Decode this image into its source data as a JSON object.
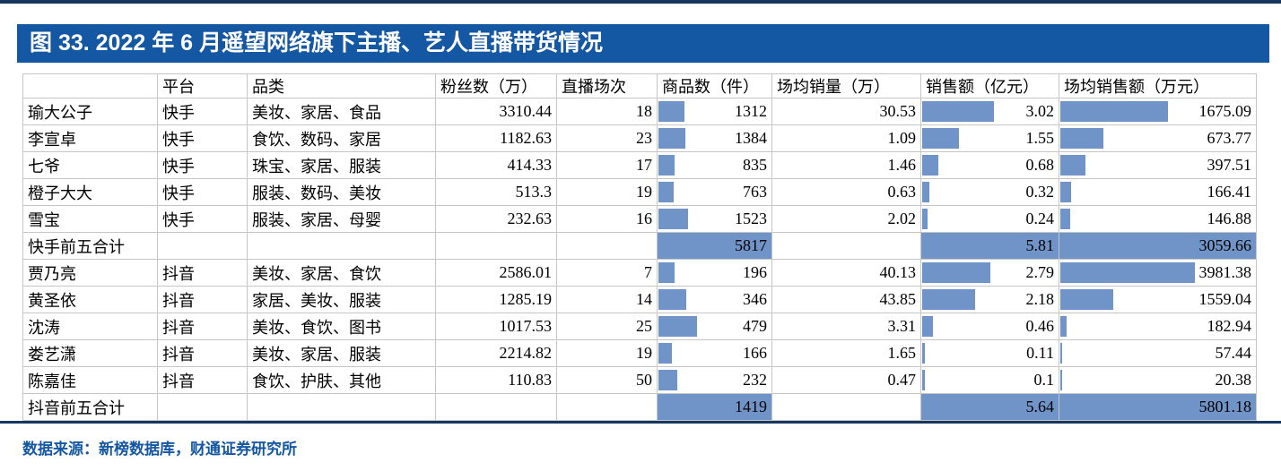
{
  "title": "图 33. 2022 年 6 月遥望网络旗下主播、艺人直播带货情况",
  "source": "数据来源：新榜数据库，财通证券研究所",
  "colors": {
    "banner_blue": "#1457a3",
    "rule_navy": "#17365d",
    "databar_blue": "#7094c8",
    "grid_gray": "#c6c6c6"
  },
  "chart_data": {
    "type": "table",
    "columns": [
      "",
      "平台",
      "品类",
      "粉丝数（万）",
      "直播场次",
      "商品数（件）",
      "场均销量（万）",
      "销售额（亿元）",
      "场均销售额（万元）"
    ],
    "bar_columns": [
      "products",
      "revenue",
      "avg_revenue"
    ],
    "bar_max": {
      "kuaishou": {
        "products": 5817,
        "revenue": 5.81,
        "avg_revenue": 3059.66
      },
      "douyin": {
        "products": 1419,
        "revenue": 5.64,
        "avg_revenue": 5801.18
      }
    },
    "rows": [
      {
        "group": "kuaishou",
        "summary": false,
        "name": "瑜大公子",
        "platform": "快手",
        "category": "美妆、家居、食品",
        "fans": "3310.44",
        "sessions": "18",
        "products": "1312",
        "avg_sales_vol": "30.53",
        "revenue": "3.02",
        "avg_revenue": "1675.09"
      },
      {
        "group": "kuaishou",
        "summary": false,
        "name": "李宣卓",
        "platform": "快手",
        "category": "食饮、数码、家居",
        "fans": "1182.63",
        "sessions": "23",
        "products": "1384",
        "avg_sales_vol": "1.09",
        "revenue": "1.55",
        "avg_revenue": "673.77"
      },
      {
        "group": "kuaishou",
        "summary": false,
        "name": "七爷",
        "platform": "快手",
        "category": "珠宝、家居、服装",
        "fans": "414.33",
        "sessions": "17",
        "products": "835",
        "avg_sales_vol": "1.46",
        "revenue": "0.68",
        "avg_revenue": "397.51"
      },
      {
        "group": "kuaishou",
        "summary": false,
        "name": "橙子大大",
        "platform": "快手",
        "category": "服装、数码、美妆",
        "fans": "513.3",
        "sessions": "19",
        "products": "763",
        "avg_sales_vol": "0.63",
        "revenue": "0.32",
        "avg_revenue": "166.41"
      },
      {
        "group": "kuaishou",
        "summary": false,
        "name": "雪宝",
        "platform": "快手",
        "category": "服装、家居、母婴",
        "fans": "232.63",
        "sessions": "16",
        "products": "1523",
        "avg_sales_vol": "2.02",
        "revenue": "0.24",
        "avg_revenue": "146.88"
      },
      {
        "group": "kuaishou",
        "summary": true,
        "name": "快手前五合计",
        "platform": "",
        "category": "",
        "fans": "",
        "sessions": "",
        "products": "5817",
        "avg_sales_vol": "",
        "revenue": "5.81",
        "avg_revenue": "3059.66"
      },
      {
        "group": "douyin",
        "summary": false,
        "name": "贾乃亮",
        "platform": "抖音",
        "category": "美妆、家居、食饮",
        "fans": "2586.01",
        "sessions": "7",
        "products": "196",
        "avg_sales_vol": "40.13",
        "revenue": "2.79",
        "avg_revenue": "3981.38"
      },
      {
        "group": "douyin",
        "summary": false,
        "name": "黄圣依",
        "platform": "抖音",
        "category": "家居、美妆、服装",
        "fans": "1285.19",
        "sessions": "14",
        "products": "346",
        "avg_sales_vol": "43.85",
        "revenue": "2.18",
        "avg_revenue": "1559.04"
      },
      {
        "group": "douyin",
        "summary": false,
        "name": "沈涛",
        "platform": "抖音",
        "category": "美妆、食饮、图书",
        "fans": "1017.53",
        "sessions": "25",
        "products": "479",
        "avg_sales_vol": "3.31",
        "revenue": "0.46",
        "avg_revenue": "182.94"
      },
      {
        "group": "douyin",
        "summary": false,
        "name": "娄艺潇",
        "platform": "抖音",
        "category": "美妆、家居、服装",
        "fans": "2214.82",
        "sessions": "19",
        "products": "166",
        "avg_sales_vol": "1.65",
        "revenue": "0.11",
        "avg_revenue": "57.44"
      },
      {
        "group": "douyin",
        "summary": false,
        "name": "陈嘉佳",
        "platform": "抖音",
        "category": "食饮、护肤、其他",
        "fans": "110.83",
        "sessions": "50",
        "products": "232",
        "avg_sales_vol": "0.47",
        "revenue": "0.1",
        "avg_revenue": "20.38"
      },
      {
        "group": "douyin",
        "summary": true,
        "name": "抖音前五合计",
        "platform": "",
        "category": "",
        "fans": "",
        "sessions": "",
        "products": "1419",
        "avg_sales_vol": "",
        "revenue": "5.64",
        "avg_revenue": "5801.18"
      }
    ]
  }
}
